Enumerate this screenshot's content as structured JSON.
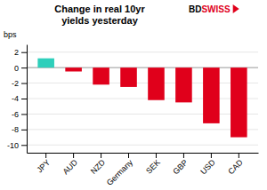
{
  "chart_data": {
    "type": "bar",
    "title": "Change in real 10yr\nyields yesterday",
    "ylabel": "bps",
    "categories": [
      "JPY",
      "AUD",
      "NZD",
      "Germany",
      "SEK",
      "GBP",
      "USD",
      "CAD"
    ],
    "values": [
      1.2,
      -0.5,
      -2.2,
      -2.5,
      -4.2,
      -4.5,
      -7.2,
      -9.0
    ],
    "colors": [
      "#2ecfbb",
      "#e0001b",
      "#e0001b",
      "#e0001b",
      "#e0001b",
      "#e0001b",
      "#e0001b",
      "#e0001b"
    ],
    "ylim": [
      -11,
      3
    ],
    "yticks": [
      -10,
      -8,
      -6,
      -4,
      -2,
      0,
      2
    ],
    "grid": true,
    "annotations": [
      {
        "text": "BD",
        "color": "#000000"
      },
      {
        "text": "SWISS",
        "color": "#e0001b"
      }
    ]
  }
}
